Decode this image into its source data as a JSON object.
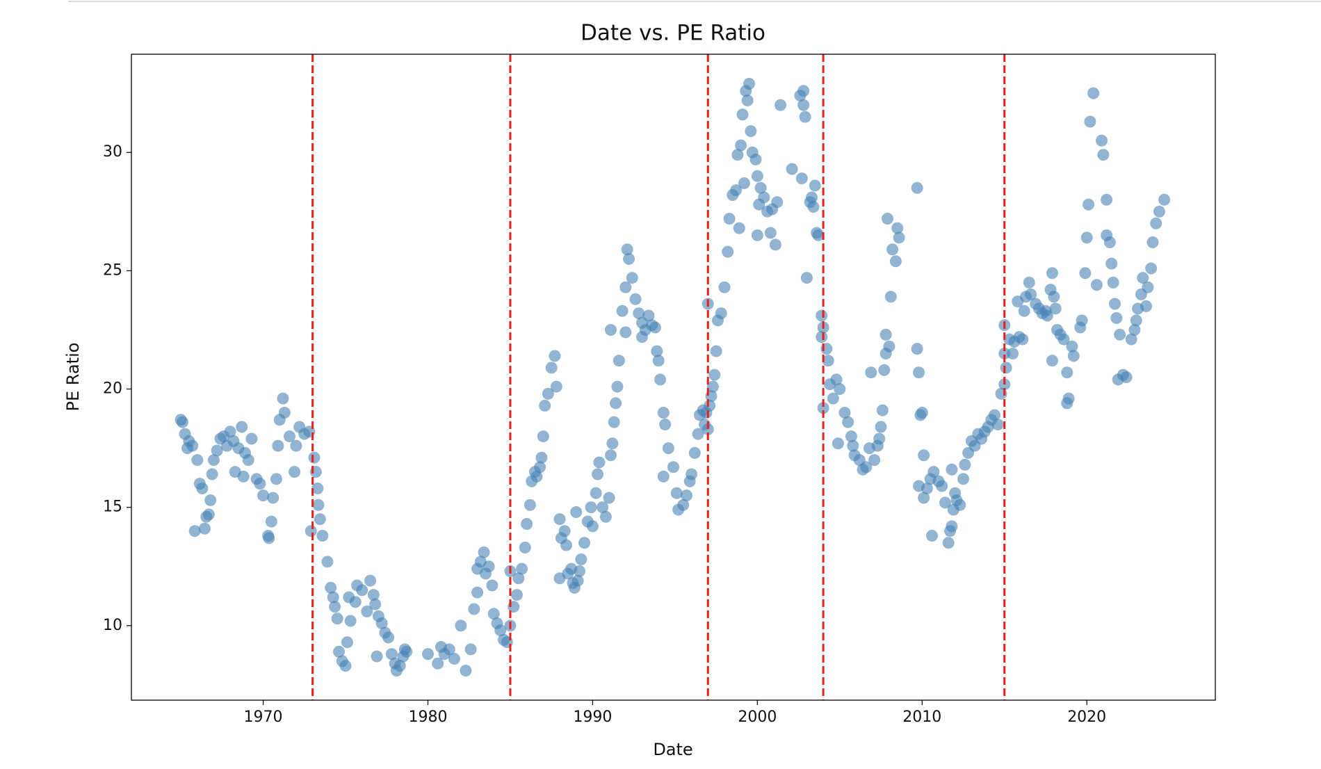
{
  "chart_data": {
    "type": "scatter",
    "title": "Date vs. PE Ratio",
    "x_label": "Date",
    "y_label": "PE Ratio",
    "x": [
      1965.0,
      1965.1,
      1965.25,
      1965.4,
      1965.5,
      1965.7,
      1965.85,
      1966.0,
      1966.15,
      1966.3,
      1966.45,
      1966.55,
      1966.7,
      1966.8,
      1966.9,
      1967.0,
      1967.2,
      1967.4,
      1967.6,
      1967.8,
      1968.0,
      1968.2,
      1968.3,
      1968.5,
      1968.7,
      1968.9,
      1968.8,
      1969.1,
      1969.3,
      1969.6,
      1969.8,
      1970.0,
      1970.3,
      1970.35,
      1970.5,
      1970.6,
      1970.8,
      1970.9,
      1971.0,
      1971.2,
      1971.3,
      1971.6,
      1971.9,
      1972.0,
      1972.2,
      1972.5,
      1972.8,
      1973.1,
      1973.2,
      1973.3,
      1972.9,
      1973.35,
      1973.45,
      1973.6,
      1973.9,
      1974.1,
      1974.25,
      1974.35,
      1974.5,
      1974.6,
      1974.8,
      1975.0,
      1975.1,
      1975.3,
      1975.2,
      1975.6,
      1975.7,
      1976.0,
      1976.3,
      1976.5,
      1976.7,
      1976.8,
      1977.0,
      1977.2,
      1977.4,
      1977.6,
      1977.8,
      1976.9,
      1978.0,
      1978.1,
      1978.3,
      1978.5,
      1978.6,
      1978.7,
      1980.0,
      1980.6,
      1980.8,
      1981.0,
      1981.3,
      1981.6,
      1982.0,
      1982.3,
      1982.6,
      1982.8,
      1983.0,
      1983.0,
      1983.2,
      1983.4,
      1983.5,
      1983.7,
      1983.9,
      1984.0,
      1984.2,
      1984.4,
      1984.6,
      1984.8,
      1985.0,
      1985.0,
      1985.2,
      1985.4,
      1985.5,
      1985.7,
      1985.9,
      1986.0,
      1986.2,
      1986.3,
      1986.5,
      1986.6,
      1986.8,
      1986.9,
      1987.0,
      1987.1,
      1987.3,
      1987.5,
      1987.7,
      1987.8,
      1988.0,
      1988.1,
      1988.3,
      1988.0,
      1988.4,
      1988.5,
      1988.7,
      1988.8,
      1988.9,
      1989.1,
      1989.2,
      1989.3,
      1989.5,
      1989.0,
      1989.7,
      1989.9,
      1990.0,
      1990.2,
      1990.4,
      1990.3,
      1990.6,
      1990.8,
      1991.0,
      1991.1,
      1991.2,
      1991.3,
      1991.4,
      1991.5,
      1991.6,
      1991.1,
      1991.8,
      1992.0,
      1992.1,
      1992.2,
      1992.4,
      1992.0,
      1992.6,
      1992.8,
      1993.0,
      1993.0,
      1993.2,
      1993.4,
      1993.6,
      1993.8,
      1993.9,
      1994.0,
      1994.1,
      1994.3,
      1994.4,
      1994.6,
      1994.3,
      1994.9,
      1995.1,
      1995.2,
      1995.5,
      1995.7,
      1995.9,
      1996.0,
      1996.2,
      1996.4,
      1996.5,
      1996.7,
      1996.9,
      1997.0,
      1996.8,
      1997.1,
      1997.2,
      1997.3,
      1997.4,
      1997.0,
      1997.5,
      1997.6,
      1997.8,
      1998.0,
      1998.2,
      1998.3,
      1998.5,
      1998.7,
      1998.8,
      1998.9,
      1999.2,
      1999.0,
      1999.1,
      1999.3,
      1999.5,
      1999.4,
      1999.6,
      1999.7,
      1999.9,
      2000.0,
      2000.2,
      2000.1,
      2000.0,
      2000.4,
      2000.6,
      2000.8,
      2001.1,
      2001.2,
      2000.9,
      2001.4,
      2002.1,
      2002.7,
      2002.6,
      2002.8,
      2002.8,
      2002.9,
      2003.0,
      2003.2,
      2003.5,
      2003.3,
      2003.4,
      2003.6,
      2003.7,
      2003.9,
      2004.0,
      2003.9,
      2004.2,
      2004.3,
      2004.0,
      2004.4,
      2004.6,
      2004.8,
      2005.0,
      2005.3,
      2005.5,
      2004.9,
      2005.8,
      2005.7,
      2005.9,
      2006.2,
      2006.4,
      2006.6,
      2006.8,
      2006.9,
      2007.1,
      2007.3,
      2007.4,
      2007.5,
      2007.6,
      2007.7,
      2007.8,
      2008.0,
      2007.8,
      2008.1,
      2008.4,
      2008.2,
      2008.6,
      2007.9,
      2008.5,
      2009.7,
      2009.7,
      2009.8,
      2009.9,
      2010.0,
      2009.8,
      2010.1,
      2010.3,
      2010.5,
      2010.7,
      2010.1,
      2010.6,
      2011.0,
      2011.2,
      2011.4,
      2011.6,
      2011.7,
      2011.8,
      2011.9,
      2012.0,
      2011.8,
      2012.1,
      2012.3,
      2012.5,
      2012.6,
      2012.8,
      2013.0,
      2013.2,
      2013.4,
      2013.6,
      2013.8,
      2014.0,
      2014.2,
      2014.4,
      2014.6,
      2014.8,
      2015.0,
      2015.1,
      2015.0,
      2015.0,
      2015.3,
      2015.6,
      2015.5,
      2015.9,
      2016.1,
      2015.8,
      2016.3,
      2016.5,
      2016.2,
      2016.6,
      2016.9,
      2017.1,
      2017.3,
      2017.5,
      2017.6,
      2017.8,
      2017.9,
      2018.0,
      2018.1,
      2017.9,
      2018.2,
      2018.4,
      2018.6,
      2018.8,
      2018.9,
      2018.8,
      2019.2,
      2019.1,
      2019.6,
      2019.7,
      2019.9,
      2020.0,
      2020.1,
      2020.2,
      2020.4,
      2020.6,
      2021.2,
      2021.0,
      2020.9,
      2021.2,
      2021.4,
      2021.5,
      2021.6,
      2021.7,
      2021.8,
      2022.0,
      2021.9,
      2022.2,
      2022.4,
      2022.7,
      2022.9,
      2023.0,
      2023.1,
      2023.3,
      2023.4,
      2023.6,
      2023.7,
      2023.9,
      2024.0,
      2024.2,
      2024.4,
      2024.7
    ],
    "values": [
      18.7,
      18.6,
      18.1,
      17.5,
      17.8,
      17.6,
      14.0,
      17.0,
      16.0,
      15.8,
      14.1,
      14.6,
      14.7,
      15.3,
      16.4,
      17.0,
      17.4,
      17.9,
      18.0,
      17.6,
      18.2,
      17.8,
      16.5,
      17.5,
      18.4,
      17.3,
      16.3,
      17.0,
      17.9,
      16.2,
      16.0,
      15.5,
      13.8,
      13.7,
      14.4,
      15.4,
      16.2,
      17.6,
      18.7,
      19.6,
      19.0,
      18.0,
      16.5,
      17.6,
      18.4,
      18.1,
      18.2,
      17.1,
      16.5,
      15.8,
      14.0,
      15.1,
      14.5,
      13.8,
      12.7,
      11.6,
      11.2,
      10.8,
      10.3,
      8.9,
      8.5,
      8.3,
      9.3,
      10.2,
      11.2,
      11.0,
      11.7,
      11.5,
      10.6,
      11.9,
      11.3,
      10.9,
      10.4,
      10.1,
      9.7,
      9.5,
      8.8,
      8.7,
      8.4,
      8.1,
      8.3,
      8.7,
      9.0,
      8.9,
      8.8,
      8.4,
      9.1,
      8.8,
      9.0,
      8.6,
      10.0,
      8.1,
      9.0,
      10.7,
      11.4,
      12.4,
      12.7,
      13.1,
      12.2,
      12.5,
      11.7,
      10.5,
      10.1,
      9.8,
      9.4,
      9.3,
      10.0,
      12.3,
      10.8,
      11.3,
      12.0,
      12.4,
      13.3,
      14.3,
      15.1,
      16.1,
      16.5,
      16.3,
      16.7,
      17.1,
      18.0,
      19.3,
      19.8,
      20.9,
      21.4,
      20.1,
      14.5,
      13.7,
      14.0,
      12.0,
      13.4,
      12.2,
      12.4,
      11.8,
      11.6,
      11.9,
      12.3,
      12.8,
      13.5,
      14.8,
      14.4,
      15.0,
      14.2,
      15.6,
      16.9,
      16.4,
      15.0,
      14.6,
      15.4,
      17.2,
      17.7,
      18.6,
      19.4,
      20.1,
      21.2,
      22.5,
      23.3,
      24.3,
      25.9,
      25.5,
      24.7,
      22.4,
      23.8,
      23.2,
      22.8,
      22.2,
      22.5,
      23.1,
      22.7,
      22.6,
      21.6,
      21.2,
      20.4,
      19.0,
      18.5,
      17.5,
      16.3,
      16.7,
      15.6,
      14.9,
      15.1,
      15.5,
      16.1,
      16.4,
      17.3,
      18.1,
      18.9,
      19.1,
      19.0,
      18.3,
      18.5,
      19.3,
      19.7,
      20.1,
      20.6,
      23.6,
      21.6,
      22.9,
      23.2,
      24.3,
      25.8,
      27.2,
      28.2,
      28.4,
      29.9,
      26.8,
      28.7,
      30.3,
      31.6,
      32.6,
      32.9,
      32.2,
      30.9,
      30.0,
      29.7,
      29.0,
      28.5,
      27.8,
      26.5,
      28.1,
      27.5,
      26.6,
      26.1,
      27.9,
      27.6,
      32.0,
      29.3,
      28.9,
      32.4,
      32.6,
      32.0,
      31.5,
      24.7,
      27.9,
      28.6,
      28.1,
      27.7,
      26.6,
      26.5,
      23.1,
      22.6,
      22.2,
      21.7,
      21.2,
      19.2,
      20.2,
      19.6,
      20.4,
      20.0,
      19.0,
      18.6,
      17.7,
      17.6,
      18.0,
      17.2,
      17.0,
      16.6,
      16.7,
      17.5,
      20.7,
      17.0,
      17.6,
      17.9,
      18.4,
      19.1,
      20.8,
      21.5,
      21.8,
      22.3,
      23.9,
      25.4,
      25.9,
      26.4,
      27.2,
      26.8,
      28.5,
      21.7,
      20.7,
      18.9,
      19.0,
      15.9,
      15.4,
      15.8,
      16.2,
      16.5,
      17.2,
      13.8,
      16.1,
      15.9,
      15.2,
      13.5,
      14.0,
      14.2,
      14.9,
      15.6,
      16.6,
      15.3,
      15.1,
      16.2,
      16.8,
      17.3,
      17.8,
      17.6,
      18.1,
      17.9,
      18.2,
      18.4,
      18.7,
      18.9,
      18.5,
      19.8,
      20.2,
      20.9,
      21.5,
      22.7,
      22.1,
      22.0,
      21.5,
      22.2,
      22.1,
      23.7,
      23.9,
      24.5,
      23.3,
      24.0,
      23.6,
      23.4,
      23.2,
      23.3,
      23.1,
      24.2,
      24.9,
      23.9,
      23.4,
      21.2,
      22.5,
      22.3,
      22.1,
      19.4,
      19.6,
      20.7,
      21.4,
      21.8,
      22.6,
      22.9,
      24.9,
      26.4,
      27.8,
      31.3,
      32.5,
      24.4,
      28.0,
      29.9,
      30.5,
      26.5,
      26.2,
      25.3,
      24.5,
      23.6,
      23.0,
      22.3,
      20.4,
      20.6,
      20.5,
      22.1,
      22.5,
      22.9,
      23.4,
      24.0,
      24.7,
      23.5,
      24.3,
      25.1,
      26.2,
      27.0,
      27.5,
      28.0
    ],
    "color": "#4682b4",
    "vlines": [
      1973,
      1985,
      1997,
      2004,
      2015
    ],
    "vline_color": "#e8201a",
    "xlim": [
      1962.0,
      2027.8
    ],
    "xticks": [
      1970,
      1980,
      1990,
      2000,
      2010,
      2020
    ],
    "ylim": [
      6.85,
      34.15
    ],
    "yticks": [
      10,
      15,
      20,
      25,
      30
    ],
    "grid": false
  }
}
